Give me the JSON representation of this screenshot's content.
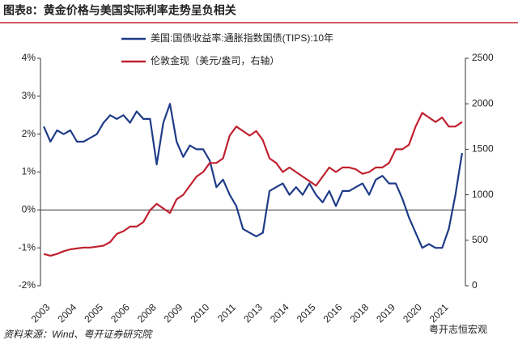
{
  "chart_data": {
    "type": "line",
    "title": "图表8：黄金价格与美国实际利率走势呈负相关",
    "source": "资料来源：Wind、粤开证券研究院",
    "watermark": "粤开志恒宏观",
    "categories": [
      "2003",
      null,
      null,
      null,
      "2004",
      null,
      null,
      null,
      "2005",
      null,
      null,
      null,
      "2006",
      null,
      null,
      null,
      "2008",
      null,
      null,
      null,
      "2009",
      null,
      null,
      null,
      "2010",
      null,
      null,
      null,
      "2011",
      null,
      null,
      null,
      "2013",
      null,
      null,
      null,
      "2014",
      null,
      null,
      null,
      "2015",
      null,
      null,
      null,
      "2016",
      null,
      null,
      null,
      "2018",
      null,
      null,
      null,
      "2019",
      null,
      null,
      null,
      "2020",
      null,
      null,
      null,
      "2021",
      null,
      null,
      null
    ],
    "series": [
      {
        "name": "美国:国债收益率:通胀指数国债(TIPS):10年",
        "color": "#1f3c88",
        "values": [
          2.2,
          1.8,
          2.1,
          2.0,
          2.1,
          1.8,
          1.8,
          1.9,
          2.0,
          2.3,
          2.5,
          2.4,
          2.5,
          2.3,
          2.6,
          2.4,
          2.4,
          1.2,
          2.3,
          2.8,
          1.8,
          1.4,
          1.7,
          1.6,
          1.6,
          1.3,
          0.6,
          0.8,
          0.4,
          0.1,
          -0.5,
          -0.6,
          -0.7,
          -0.6,
          0.5,
          0.6,
          0.7,
          0.4,
          0.6,
          0.4,
          0.7,
          0.4,
          0.2,
          0.5,
          0.1,
          0.5,
          0.5,
          0.6,
          0.7,
          0.4,
          0.8,
          0.9,
          0.7,
          0.7,
          0.3,
          -0.2,
          -0.6,
          -1.0,
          -0.9,
          -1.0,
          -1.0,
          -0.5,
          0.4,
          1.5
        ]
      },
      {
        "name": "伦敦金现（美元/盎司，右轴）",
        "color": "#c0212f",
        "axis": "y2",
        "values": [
          350,
          330,
          350,
          380,
          400,
          410,
          420,
          420,
          430,
          440,
          480,
          570,
          600,
          650,
          650,
          700,
          830,
          900,
          850,
          800,
          950,
          1000,
          1100,
          1200,
          1250,
          1350,
          1350,
          1400,
          1650,
          1750,
          1700,
          1650,
          1700,
          1600,
          1400,
          1350,
          1250,
          1300,
          1250,
          1200,
          1150,
          1100,
          1200,
          1300,
          1250,
          1300,
          1300,
          1280,
          1230,
          1250,
          1300,
          1300,
          1350,
          1500,
          1500,
          1550,
          1750,
          1900,
          1850,
          1800,
          1850,
          1750,
          1750,
          1800
        ]
      }
    ],
    "ylim": [
      -2,
      4
    ],
    "yticks": [
      {
        "value": -2,
        "label": "-2%"
      },
      {
        "value": -1,
        "label": "-1%"
      },
      {
        "value": 0,
        "label": "0%"
      },
      {
        "value": 1,
        "label": "1%"
      },
      {
        "value": 2,
        "label": "2%"
      },
      {
        "value": 3,
        "label": "3%"
      },
      {
        "value": 4,
        "label": "4%"
      }
    ],
    "y2lim": [
      0,
      2500
    ],
    "y2ticks": [
      0,
      500,
      1000,
      1500,
      2000,
      2500
    ]
  }
}
